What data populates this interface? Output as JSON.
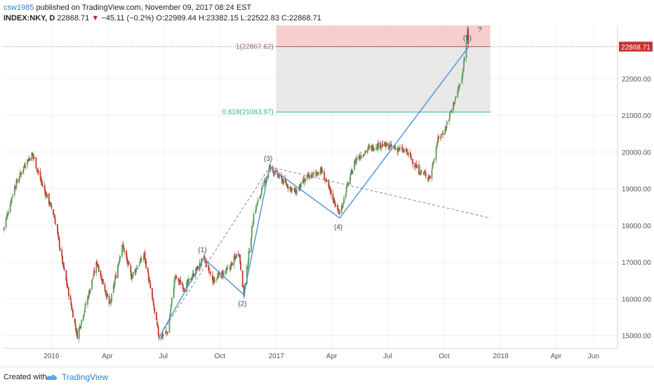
{
  "header": {
    "username": "csw1985",
    "published_text": "published on TradingView.com, November 09, 2017 08:24 EST",
    "symbol": "INDEX:NKY, D",
    "last": "22868.71",
    "change": "−45.11 (−0.2%)",
    "change_arrow": "▼",
    "open": "O:22989.44",
    "high": "H:23382.15",
    "low": "L:22522.83",
    "close": "C:22868.71"
  },
  "footer": {
    "created_with": "Created with",
    "brand": "TradingView"
  },
  "colors": {
    "up": "#5b9b5b",
    "down": "#c0392b",
    "wave": "#4a90d9",
    "fib_1": "#8a6d6d",
    "fib_0618": "#2eb886",
    "price_badge": "#c9302c",
    "risk_zone": "#f4c6c6",
    "range_zone": "#e4e4e4"
  },
  "chart_data": {
    "type": "candlestick",
    "instrument": "INDEX:NKY",
    "interval": "D",
    "x_range": [
      "2015-10-15",
      "2018-07-10"
    ],
    "x_ticks": [
      {
        "date": "2016-01-01",
        "label": "2016"
      },
      {
        "date": "2016-04-01",
        "label": "Apr"
      },
      {
        "date": "2016-07-01",
        "label": "Jul"
      },
      {
        "date": "2016-10-01",
        "label": "Oct"
      },
      {
        "date": "2017-01-01",
        "label": "2017"
      },
      {
        "date": "2017-04-01",
        "label": "Apr"
      },
      {
        "date": "2017-07-01",
        "label": "Jul"
      },
      {
        "date": "2017-10-01",
        "label": "Oct"
      },
      {
        "date": "2018-01-01",
        "label": "2018"
      },
      {
        "date": "2018-04-01",
        "label": "Apr"
      },
      {
        "date": "2018-06-01",
        "label": "Jun"
      }
    ],
    "y_range": [
      14650,
      23450
    ],
    "y_ticks": [
      "15000.00",
      "16000.00",
      "17000.00",
      "18000.00",
      "19000.00",
      "20000.00",
      "21000.00",
      "22000.00"
    ],
    "last_price_label": "22868.71",
    "last_price": 22868.71,
    "price_path": [
      [
        "2015-10-15",
        17900
      ],
      [
        "2015-11-01",
        19000
      ],
      [
        "2015-11-20",
        19700
      ],
      [
        "2015-12-01",
        19950
      ],
      [
        "2015-12-15",
        19200
      ],
      [
        "2016-01-05",
        18300
      ],
      [
        "2016-01-20",
        16900
      ],
      [
        "2016-02-12",
        15000
      ],
      [
        "2016-03-01",
        16100
      ],
      [
        "2016-03-15",
        17000
      ],
      [
        "2016-04-05",
        15800
      ],
      [
        "2016-04-25",
        17500
      ],
      [
        "2016-05-10",
        16600
      ],
      [
        "2016-05-31",
        17200
      ],
      [
        "2016-06-13",
        16000
      ],
      [
        "2016-06-24",
        14952
      ],
      [
        "2016-07-08",
        15100
      ],
      [
        "2016-07-20",
        16600
      ],
      [
        "2016-08-05",
        16300
      ],
      [
        "2016-09-05",
        17100
      ],
      [
        "2016-09-20",
        16500
      ],
      [
        "2016-10-15",
        16800
      ],
      [
        "2016-11-01",
        17300
      ],
      [
        "2016-11-09",
        16111
      ],
      [
        "2016-11-25",
        18300
      ],
      [
        "2016-12-21",
        19590
      ],
      [
        "2017-01-15",
        19150
      ],
      [
        "2017-02-01",
        18900
      ],
      [
        "2017-02-20",
        19300
      ],
      [
        "2017-03-15",
        19500
      ],
      [
        "2017-04-14",
        18300
      ],
      [
        "2017-04-25",
        19000
      ],
      [
        "2017-05-10",
        19800
      ],
      [
        "2017-06-01",
        20100
      ],
      [
        "2017-06-20",
        20200
      ],
      [
        "2017-07-15",
        20100
      ],
      [
        "2017-08-01",
        20000
      ],
      [
        "2017-08-20",
        19500
      ],
      [
        "2017-09-08",
        19300
      ],
      [
        "2017-09-20",
        20300
      ],
      [
        "2017-10-02",
        20600
      ],
      [
        "2017-10-16",
        21300
      ],
      [
        "2017-10-30",
        22000
      ],
      [
        "2017-11-08",
        23382
      ],
      [
        "2017-11-09",
        22868
      ]
    ],
    "elliott_waves": [
      {
        "label": "(1)",
        "date": "2016-09-05",
        "value": 17100
      },
      {
        "label": "(2)",
        "date": "2016-11-09",
        "value": 16111
      },
      {
        "label": "(3)",
        "date": "2016-12-21",
        "value": 19590
      },
      {
        "label": "(4)",
        "date": "2017-04-14",
        "value": 18200
      },
      {
        "label": "(5)",
        "date": "2017-11-10",
        "value": 22868
      },
      {
        "label": "?",
        "date": "2017-11-28",
        "value": 23100
      }
    ],
    "wave_start": {
      "date": "2016-06-24",
      "value": 14952
    },
    "channel_lines": [
      {
        "from": [
          "2016-06-24",
          14952
        ],
        "to": [
          "2016-12-21",
          19590
        ]
      },
      {
        "from": [
          "2016-12-21",
          19590
        ],
        "to": [
          "2017-12-15",
          18200
        ]
      }
    ],
    "fib_levels": [
      {
        "label": "1(22867.62)",
        "value": 22867.62
      },
      {
        "label": "0.618(21083.97)",
        "value": 21083.97
      }
    ],
    "zones": [
      {
        "name": "risk-zone",
        "x_from": "2017-01-01",
        "x_to": "2017-12-15",
        "y_from": 22867.62,
        "y_to": 23450
      },
      {
        "name": "range-zone",
        "x_from": "2017-01-01",
        "x_to": "2017-12-15",
        "y_from": 21083.97,
        "y_to": 22867.62
      }
    ]
  }
}
